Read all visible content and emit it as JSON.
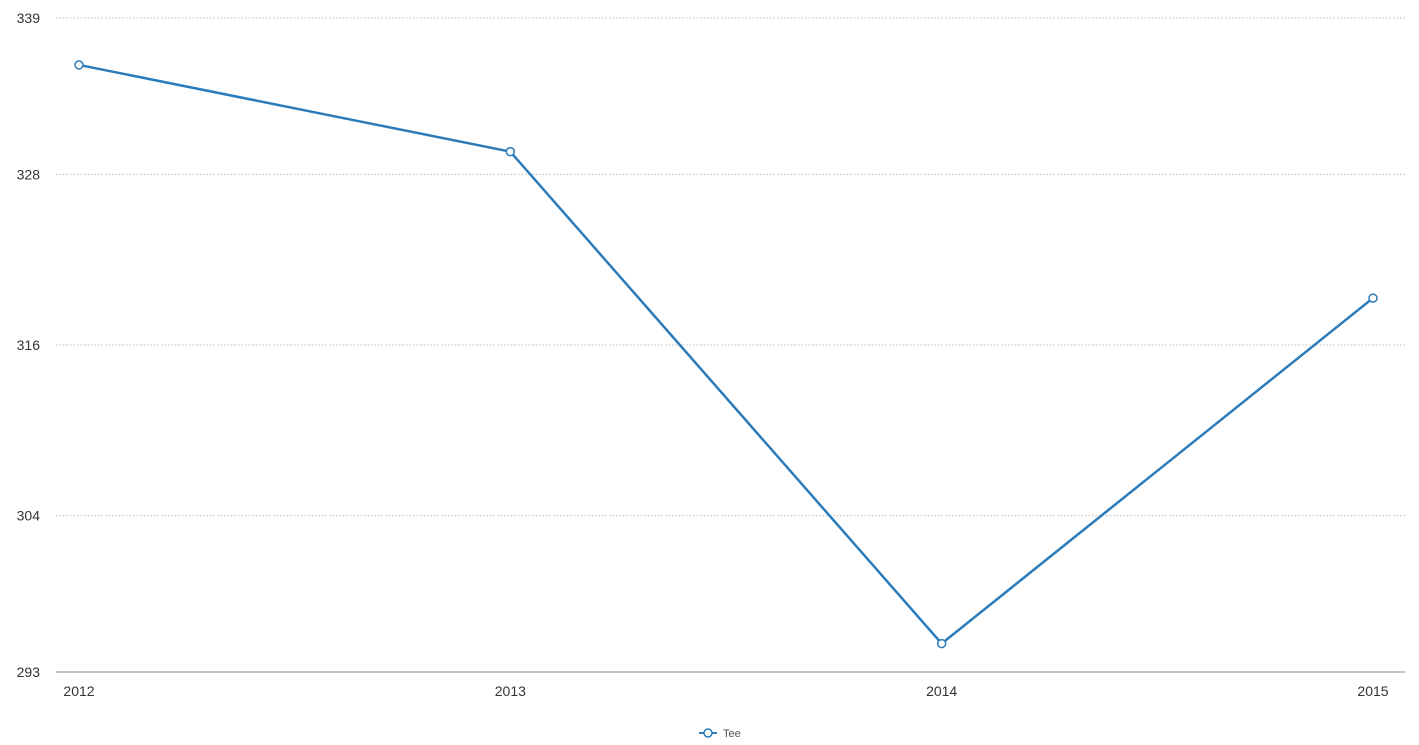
{
  "chart_data": {
    "type": "line",
    "title": "",
    "xlabel": "",
    "ylabel": "",
    "categories": [
      "2012",
      "2013",
      "2014",
      "2015"
    ],
    "series": [
      {
        "name": "Tee",
        "values": [
          335.7,
          329.6,
          295.0,
          319.3
        ]
      }
    ],
    "ylim": [
      293,
      339
    ],
    "yticks": [
      293,
      304,
      316,
      328,
      339
    ],
    "grid": true,
    "legend": "bottom-center",
    "colors": {
      "series": "#2b7bba",
      "grid": "#bbbbbb",
      "axis": "#888888"
    }
  }
}
